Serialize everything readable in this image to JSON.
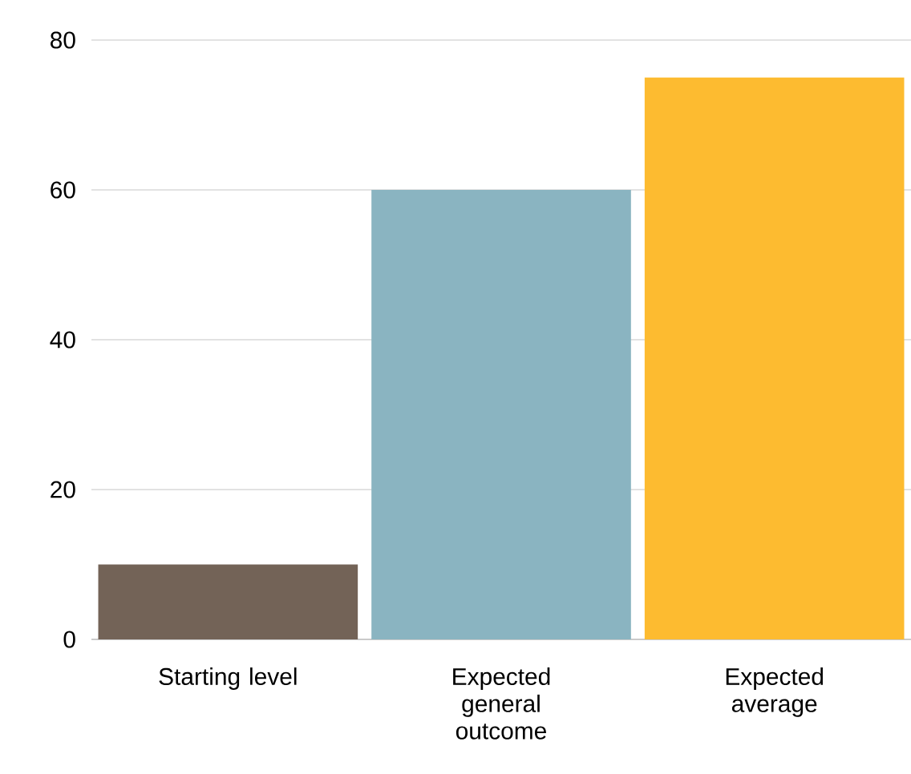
{
  "chart_data": {
    "type": "bar",
    "categories": [
      "Starting level",
      "Expected general outcome",
      "Expected average"
    ],
    "values": [
      10,
      60,
      75
    ],
    "colors": [
      "#736357",
      "#8ab4c1",
      "#fdbb30"
    ],
    "ylim": [
      0,
      80
    ],
    "yticks": [
      0,
      20,
      40,
      60,
      80
    ],
    "grid": "y"
  }
}
